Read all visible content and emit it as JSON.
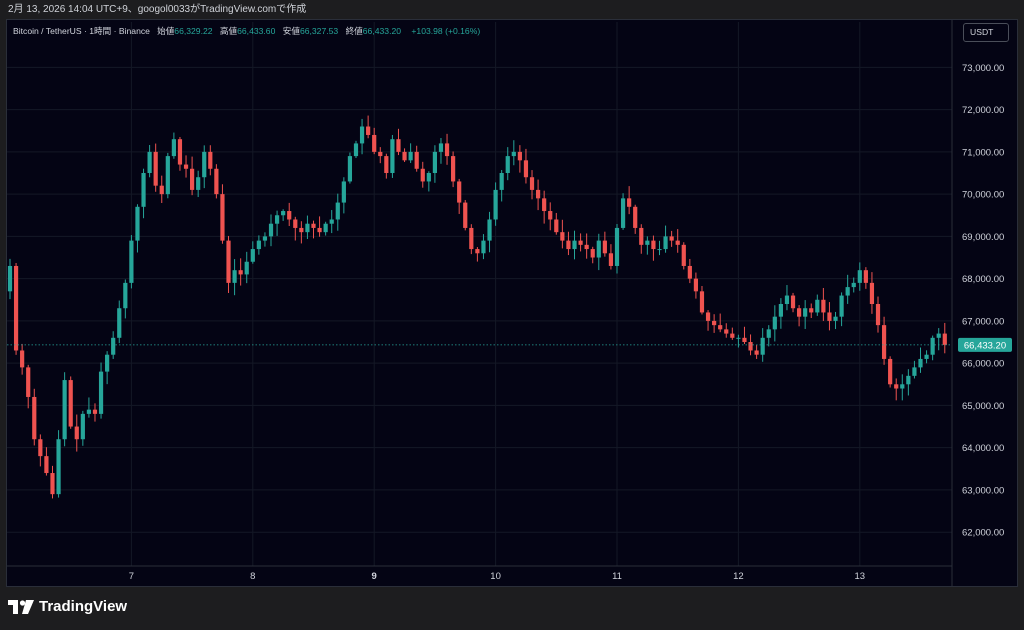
{
  "watermark": "2月 13, 2026 14:04 UTC+9、googol0033がTradingView.comで作成",
  "header": {
    "symbol": "Bitcoin / TetherUS · 1時間 · Binance",
    "open_label": "始値",
    "open_value": "66,329.22",
    "high_label": "高値",
    "high_value": "66,433.60",
    "low_label": "安値",
    "low_value": "66,327.53",
    "close_label": "終値",
    "close_value": "66,433.20",
    "change": "+103.98 (+0.16%)"
  },
  "currency_button": "USDT",
  "brand": "TradingView",
  "colors": {
    "up": "#26a69a",
    "down": "#ef5350",
    "background": "#040414",
    "grid": "#141826"
  },
  "chart_data": {
    "type": "candlestick",
    "instrument": "BTC/USDT",
    "interval": "1時間",
    "exchange": "Binance",
    "y_ticks": [
      "62,000.00",
      "63,000.00",
      "64,000.00",
      "65,000.00",
      "66,000.00",
      "67,000.00",
      "68,000.00",
      "69,000.00",
      "70,000.00",
      "71,000.00",
      "72,000.00",
      "73,000.00"
    ],
    "y_tick_values": [
      62000,
      63000,
      64000,
      65000,
      66000,
      67000,
      68000,
      69000,
      70000,
      71000,
      72000,
      73000
    ],
    "ylim": [
      61200,
      73600
    ],
    "x_ticks": [
      {
        "label": "7",
        "index": 20
      },
      {
        "label": "8",
        "index": 40
      },
      {
        "label": "9",
        "index": 60,
        "bold": true
      },
      {
        "label": "10",
        "index": 80
      },
      {
        "label": "11",
        "index": 100
      },
      {
        "label": "12",
        "index": 120
      },
      {
        "label": "13",
        "index": 140
      }
    ],
    "last_price": 66433.2,
    "last_price_label": "66,433.20",
    "closes": [
      68300,
      66300,
      65900,
      65200,
      64200,
      63800,
      63400,
      62900,
      64200,
      65600,
      64500,
      64200,
      64800,
      64900,
      64800,
      65800,
      66200,
      66600,
      67300,
      67900,
      68900,
      69700,
      70500,
      71000,
      70200,
      70000,
      70900,
      71300,
      70700,
      70600,
      70100,
      70400,
      71000,
      70600,
      70000,
      68900,
      67900,
      68200,
      68100,
      68400,
      68700,
      68900,
      69000,
      69300,
      69500,
      69600,
      69400,
      69200,
      69100,
      69300,
      69200,
      69100,
      69300,
      69400,
      69800,
      70300,
      70900,
      71200,
      71600,
      71400,
      71000,
      70900,
      70500,
      71300,
      71000,
      70800,
      71000,
      70600,
      70300,
      70500,
      71000,
      71200,
      70900,
      70300,
      69800,
      69200,
      68700,
      68600,
      68900,
      69400,
      70100,
      70500,
      70900,
      71000,
      70800,
      70400,
      70100,
      69900,
      69600,
      69400,
      69100,
      68900,
      68700,
      68900,
      68800,
      68700,
      68500,
      68900,
      68600,
      68300,
      69200,
      69900,
      69700,
      69200,
      68800,
      68900,
      68700,
      68700,
      69000,
      68900,
      68800,
      68300,
      68000,
      67700,
      67200,
      67000,
      66900,
      66800,
      66700,
      66600,
      66600,
      66500,
      66300,
      66200,
      66600,
      66800,
      67100,
      67400,
      67600,
      67300,
      67100,
      67300,
      67200,
      67500,
      67200,
      67000,
      67100,
      67600,
      67800,
      67900,
      68200,
      67900,
      67400,
      66900,
      66100,
      65500,
      65400,
      65500,
      65700,
      65900,
      66100,
      66200,
      66600,
      66700,
      66433
    ]
  }
}
